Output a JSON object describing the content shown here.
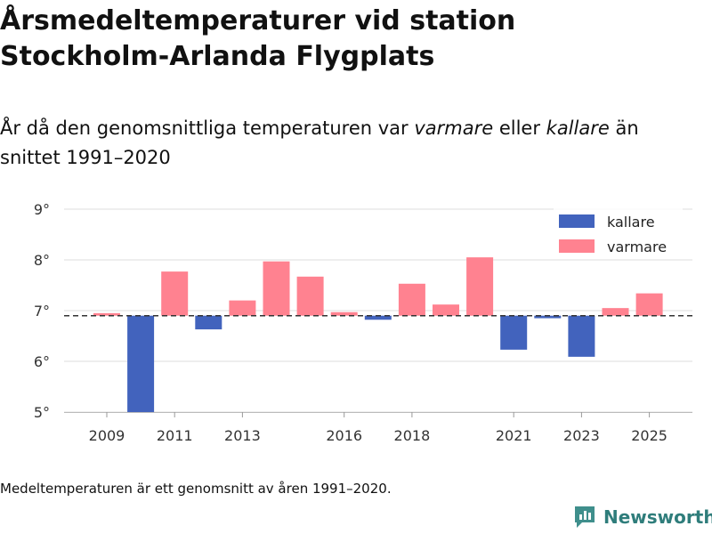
{
  "header": {
    "title_line1": "Årsmedeltemperaturer vid station",
    "title_line2": "Stockholm-Arlanda Flygplats",
    "subtitle_part1": "År då den genomsnittliga temperaturen var ",
    "subtitle_em1": "varmare",
    "subtitle_part2": " eller ",
    "subtitle_em2": "kallare",
    "subtitle_part3": " än snittet 1991–2020"
  },
  "footer": {
    "note": "Medeltemperaturen är ett genomsnitt av åren 1991–2020.",
    "brand": "Newsworthy"
  },
  "colors": {
    "colder": "#4263bd",
    "warmer": "#ff8290",
    "baseline": "#333333",
    "grid": "#dddddd",
    "brand": "#2f7d7b"
  },
  "chart_data": {
    "type": "bar",
    "baseline": 6.9,
    "ylim": [
      5,
      9
    ],
    "yticks": [
      5,
      6,
      7,
      8,
      9
    ],
    "ytick_labels": [
      "5°",
      "6°",
      "7°",
      "8°",
      "9°"
    ],
    "categories": [
      2009,
      2010,
      2011,
      2012,
      2013,
      2014,
      2015,
      2016,
      2017,
      2018,
      2019,
      2020,
      2021,
      2022,
      2023,
      2024,
      2025
    ],
    "values": [
      6.95,
      5.0,
      7.77,
      6.63,
      7.2,
      7.97,
      7.67,
      6.97,
      6.82,
      7.53,
      7.12,
      8.05,
      6.23,
      6.85,
      6.09,
      7.05,
      7.34
    ],
    "xtick_labels": [
      "2009",
      "2011",
      "2013",
      "2016",
      "2018",
      "2021",
      "2023",
      "2025"
    ],
    "legend": [
      {
        "label": "kallare",
        "key": "colder"
      },
      {
        "label": "varmare",
        "key": "warmer"
      }
    ],
    "title": "Årsmedeltemperaturer vid station Stockholm-Arlanda Flygplats",
    "xlabel": "",
    "ylabel": ""
  }
}
